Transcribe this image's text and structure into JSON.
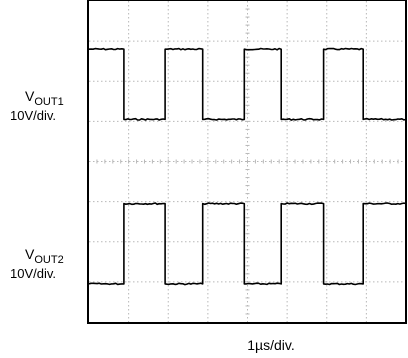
{
  "chart_data": {
    "type": "line",
    "title": "",
    "grid": true,
    "divisions": {
      "x": 8,
      "y": 8
    },
    "x_scale": "1µs/div.",
    "x_range_div": [
      0,
      8
    ],
    "y_range_div": [
      0,
      8
    ],
    "series": [
      {
        "name_main": "V",
        "name_sub": "OUT1",
        "scale": "10V/div.",
        "x_div": [
          0.0,
          0.88,
          0.88,
          1.92,
          1.92,
          2.87,
          2.87,
          3.92,
          3.92,
          4.85,
          4.85,
          5.92,
          5.92,
          6.92,
          6.92,
          8.0
        ],
        "y_div": [
          6.8,
          6.8,
          5.05,
          5.05,
          6.8,
          6.8,
          5.05,
          5.05,
          6.8,
          6.8,
          5.05,
          5.05,
          6.8,
          6.8,
          5.05,
          5.05
        ]
      },
      {
        "name_main": "V",
        "name_sub": "OUT2",
        "scale": "10V/div.",
        "x_div": [
          0.0,
          0.88,
          0.88,
          1.92,
          1.92,
          2.87,
          2.87,
          3.92,
          3.92,
          4.85,
          4.85,
          5.92,
          5.92,
          6.92,
          6.92,
          8.0
        ],
        "y_div": [
          0.95,
          0.95,
          2.95,
          2.95,
          0.95,
          0.95,
          2.95,
          2.95,
          0.95,
          0.95,
          2.95,
          2.95,
          0.95,
          0.95,
          2.95,
          2.95
        ]
      }
    ]
  }
}
